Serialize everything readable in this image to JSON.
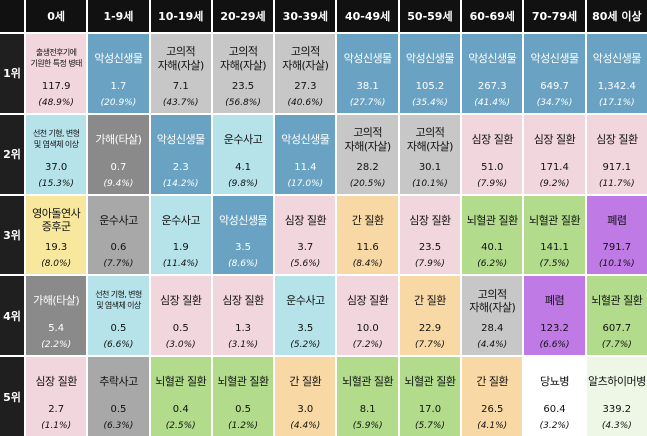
{
  "chart_data": {
    "type": "table",
    "title": "",
    "columns": [
      "0세",
      "1-9세",
      "10-19세",
      "20-29세",
      "30-39세",
      "40-49세",
      "50-59세",
      "60-69세",
      "70-79세",
      "80세 이상"
    ],
    "rows": [
      "1위",
      "2위",
      "3위",
      "4위",
      "5위"
    ],
    "cells": [
      [
        {
          "name": "출생전후기에\n기원한 특정 병태",
          "rate": "117.9",
          "pct": "(48.9%)",
          "value": 117.9,
          "share": 48.9,
          "color": "#f2d6dd",
          "small": true
        },
        {
          "name": "악성신생물",
          "rate": "1.7",
          "pct": "(20.9%)",
          "value": 1.7,
          "share": 20.9,
          "color": "#6aa2c3"
        },
        {
          "name": "고의적\n자해(자살)",
          "rate": "7.1",
          "pct": "(43.7%)",
          "value": 7.1,
          "share": 43.7,
          "color": "#c7c7c7"
        },
        {
          "name": "고의적\n자해(자살)",
          "rate": "23.5",
          "pct": "(56.8%)",
          "value": 23.5,
          "share": 56.8,
          "color": "#c7c7c7"
        },
        {
          "name": "고의적\n자해(자살)",
          "rate": "27.3",
          "pct": "(40.6%)",
          "value": 27.3,
          "share": 40.6,
          "color": "#c7c7c7"
        },
        {
          "name": "악성신생물",
          "rate": "38.1",
          "pct": "(27.7%)",
          "value": 38.1,
          "share": 27.7,
          "color": "#6aa2c3"
        },
        {
          "name": "악성신생물",
          "rate": "105.2",
          "pct": "(35.4%)",
          "value": 105.2,
          "share": 35.4,
          "color": "#6aa2c3"
        },
        {
          "name": "악성신생물",
          "rate": "267.3",
          "pct": "(41.4%)",
          "value": 267.3,
          "share": 41.4,
          "color": "#6aa2c3"
        },
        {
          "name": "악성신생물",
          "rate": "649.7",
          "pct": "(34.7%)",
          "value": 649.7,
          "share": 34.7,
          "color": "#6aa2c3"
        },
        {
          "name": "악성신생물",
          "rate": "1,342.4",
          "pct": "(17.1%)",
          "value": 1342.4,
          "share": 17.1,
          "color": "#6aa2c3"
        }
      ],
      [
        {
          "name": "선천 기형, 변형\n및 염색체 이상",
          "rate": "37.0",
          "pct": "(15.3%)",
          "value": 37.0,
          "share": 15.3,
          "color": "#b6e3ea",
          "small": true
        },
        {
          "name": "가해(타살)",
          "rate": "0.7",
          "pct": "(9.4%)",
          "value": 0.7,
          "share": 9.4,
          "color": "#8a8a8a"
        },
        {
          "name": "악성신생물",
          "rate": "2.3",
          "pct": "(14.2%)",
          "value": 2.3,
          "share": 14.2,
          "color": "#6aa2c3"
        },
        {
          "name": "운수사고",
          "rate": "4.1",
          "pct": "(9.8%)",
          "value": 4.1,
          "share": 9.8,
          "color": "#b6e3ea"
        },
        {
          "name": "악성신생물",
          "rate": "11.4",
          "pct": "(17.0%)",
          "value": 11.4,
          "share": 17.0,
          "color": "#6aa2c3"
        },
        {
          "name": "고의적\n자해(자살)",
          "rate": "28.2",
          "pct": "(20.5%)",
          "value": 28.2,
          "share": 20.5,
          "color": "#c7c7c7"
        },
        {
          "name": "고의적\n자해(자살)",
          "rate": "30.1",
          "pct": "(10.1%)",
          "value": 30.1,
          "share": 10.1,
          "color": "#c7c7c7"
        },
        {
          "name": "심장 질환",
          "rate": "51.0",
          "pct": "(7.9%)",
          "value": 51.0,
          "share": 7.9,
          "color": "#f2d6dd"
        },
        {
          "name": "심장 질환",
          "rate": "171.4",
          "pct": "(9.2%)",
          "value": 171.4,
          "share": 9.2,
          "color": "#f2d6dd"
        },
        {
          "name": "심장 질환",
          "rate": "917.1",
          "pct": "(11.7%)",
          "value": 917.1,
          "share": 11.7,
          "color": "#f2d6dd"
        }
      ],
      [
        {
          "name": "영아돌연사\n증후군",
          "rate": "19.3",
          "pct": "(8.0%)",
          "value": 19.3,
          "share": 8.0,
          "color": "#f8e89d"
        },
        {
          "name": "운수사고",
          "rate": "0.6",
          "pct": "(7.7%)",
          "value": 0.6,
          "share": 7.7,
          "color": "#a8a8a8"
        },
        {
          "name": "운수사고",
          "rate": "1.9",
          "pct": "(11.4%)",
          "value": 1.9,
          "share": 11.4,
          "color": "#b6e3ea"
        },
        {
          "name": "악성신생물",
          "rate": "3.5",
          "pct": "(8.6%)",
          "value": 3.5,
          "share": 8.6,
          "color": "#6aa2c3"
        },
        {
          "name": "심장 질환",
          "rate": "3.7",
          "pct": "(5.6%)",
          "value": 3.7,
          "share": 5.6,
          "color": "#f2d6dd"
        },
        {
          "name": "간 질환",
          "rate": "11.6",
          "pct": "(8.4%)",
          "value": 11.6,
          "share": 8.4,
          "color": "#f8d9a6"
        },
        {
          "name": "심장 질환",
          "rate": "23.5",
          "pct": "(7.9%)",
          "value": 23.5,
          "share": 7.9,
          "color": "#f2d6dd"
        },
        {
          "name": "뇌혈관 질환",
          "rate": "40.1",
          "pct": "(6.2%)",
          "value": 40.1,
          "share": 6.2,
          "color": "#b2dc8c"
        },
        {
          "name": "뇌혈관 질환",
          "rate": "141.1",
          "pct": "(7.5%)",
          "value": 141.1,
          "share": 7.5,
          "color": "#b2dc8c"
        },
        {
          "name": "폐렴",
          "rate": "791.7",
          "pct": "(10.1%)",
          "value": 791.7,
          "share": 10.1,
          "color": "#c07ae6"
        }
      ],
      [
        {
          "name": "가해(타살)",
          "rate": "5.4",
          "pct": "(2.2%)",
          "value": 5.4,
          "share": 2.2,
          "color": "#8a8a8a"
        },
        {
          "name": "선천 기형, 변형\n및 염색체 이상",
          "rate": "0.5",
          "pct": "(6.6%)",
          "value": 0.5,
          "share": 6.6,
          "color": "#b6e3ea",
          "small": true
        },
        {
          "name": "심장 질환",
          "rate": "0.5",
          "pct": "(3.0%)",
          "value": 0.5,
          "share": 3.0,
          "color": "#f2d6dd"
        },
        {
          "name": "심장 질환",
          "rate": "1.3",
          "pct": "(3.1%)",
          "value": 1.3,
          "share": 3.1,
          "color": "#f2d6dd"
        },
        {
          "name": "운수사고",
          "rate": "3.5",
          "pct": "(5.2%)",
          "value": 3.5,
          "share": 5.2,
          "color": "#b6e3ea"
        },
        {
          "name": "심장 질환",
          "rate": "10.0",
          "pct": "(7.2%)",
          "value": 10.0,
          "share": 7.2,
          "color": "#f2d6dd"
        },
        {
          "name": "간 질환",
          "rate": "22.9",
          "pct": "(7.7%)",
          "value": 22.9,
          "share": 7.7,
          "color": "#f8d9a6"
        },
        {
          "name": "고의적\n자해(자살)",
          "rate": "28.4",
          "pct": "(4.4%)",
          "value": 28.4,
          "share": 4.4,
          "color": "#c7c7c7"
        },
        {
          "name": "폐렴",
          "rate": "123.2",
          "pct": "(6.6%)",
          "value": 123.2,
          "share": 6.6,
          "color": "#c07ae6"
        },
        {
          "name": "뇌혈관 질환",
          "rate": "607.7",
          "pct": "(7.7%)",
          "value": 607.7,
          "share": 7.7,
          "color": "#b2dc8c"
        }
      ],
      [
        {
          "name": "심장 질환",
          "rate": "2.7",
          "pct": "(1.1%)",
          "value": 2.7,
          "share": 1.1,
          "color": "#f2d6dd"
        },
        {
          "name": "추락사고",
          "rate": "0.5",
          "pct": "(6.3%)",
          "value": 0.5,
          "share": 6.3,
          "color": "#a8a8a8"
        },
        {
          "name": "뇌혈관 질환",
          "rate": "0.4",
          "pct": "(2.5%)",
          "value": 0.4,
          "share": 2.5,
          "color": "#b2dc8c"
        },
        {
          "name": "뇌혈관 질환",
          "rate": "0.5",
          "pct": "(1.2%)",
          "value": 0.5,
          "share": 1.2,
          "color": "#b2dc8c"
        },
        {
          "name": "간 질환",
          "rate": "3.0",
          "pct": "(4.4%)",
          "value": 3.0,
          "share": 4.4,
          "color": "#f8d9a6"
        },
        {
          "name": "뇌혈관 질환",
          "rate": "8.1",
          "pct": "(5.9%)",
          "value": 8.1,
          "share": 5.9,
          "color": "#b2dc8c"
        },
        {
          "name": "뇌혈관 질환",
          "rate": "17.0",
          "pct": "(5.7%)",
          "value": 17.0,
          "share": 5.7,
          "color": "#b2dc8c"
        },
        {
          "name": "간 질환",
          "rate": "26.5",
          "pct": "(4.1%)",
          "value": 26.5,
          "share": 4.1,
          "color": "#f8d9a6"
        },
        {
          "name": "당뇨병",
          "rate": "60.4",
          "pct": "(3.2%)",
          "value": 60.4,
          "share": 3.2,
          "color": "#ffffff"
        },
        {
          "name": "알츠하이머병",
          "rate": "339.2",
          "pct": "(4.3%)",
          "value": 339.2,
          "share": 4.3,
          "color": "#eef7e6"
        }
      ]
    ],
    "grid": true,
    "legend": "none"
  }
}
